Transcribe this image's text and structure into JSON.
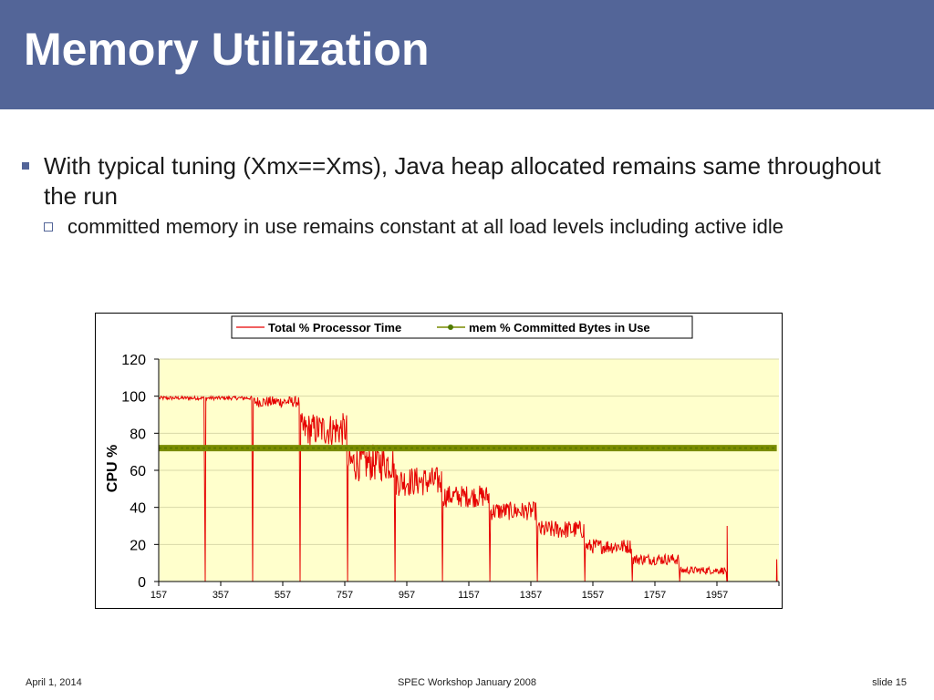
{
  "slide": {
    "title": "Memory Utilization",
    "bullets": [
      {
        "text": "With typical tuning (Xmx==Xms), Java heap allocated remains same throughout the run"
      }
    ],
    "sub_bullets": [
      {
        "text": "committed memory in use remains constant at all load levels including active idle"
      }
    ]
  },
  "footer": {
    "date": "April 1, 2014",
    "event": "SPEC Workshop January 2008",
    "slide_number": "slide 15"
  },
  "colors": {
    "title_bar": "#536598",
    "plot_background": "#ffffcc",
    "cpu_series": "#e60000",
    "mem_series": "#7a8c00"
  },
  "chart_data": {
    "type": "line",
    "title": "",
    "xlabel": "",
    "ylabel": "CPU %",
    "xlim": [
      157,
      2157
    ],
    "ylim": [
      0,
      120
    ],
    "x_ticks": [
      157,
      357,
      557,
      757,
      957,
      1157,
      1357,
      1557,
      1757,
      1957
    ],
    "y_ticks": [
      0,
      20,
      40,
      60,
      80,
      100,
      120
    ],
    "grid": "horizontal",
    "legend": "top-center",
    "series": [
      {
        "name": "Total % Processor Time",
        "style": "line",
        "color": "#e60000",
        "levels": [
          {
            "x_start": 157,
            "x_end": 307,
            "level": 99,
            "noise": 1
          },
          {
            "x_start": 307,
            "x_end": 460,
            "level": 99,
            "noise": 1
          },
          {
            "x_start": 460,
            "x_end": 613,
            "level": 97,
            "noise": 3
          },
          {
            "x_start": 613,
            "x_end": 766,
            "level": 82,
            "noise": 9
          },
          {
            "x_start": 766,
            "x_end": 919,
            "level": 64,
            "noise": 10
          },
          {
            "x_start": 919,
            "x_end": 1072,
            "level": 54,
            "noise": 8
          },
          {
            "x_start": 1072,
            "x_end": 1225,
            "level": 46,
            "noise": 6
          },
          {
            "x_start": 1225,
            "x_end": 1378,
            "level": 38,
            "noise": 5
          },
          {
            "x_start": 1378,
            "x_end": 1531,
            "level": 28,
            "noise": 5
          },
          {
            "x_start": 1531,
            "x_end": 1684,
            "level": 19,
            "noise": 4
          },
          {
            "x_start": 1684,
            "x_end": 1837,
            "level": 12,
            "noise": 3
          },
          {
            "x_start": 1837,
            "x_end": 1990,
            "level": 6,
            "noise": 2
          },
          {
            "x_start": 1990,
            "x_end": 2150,
            "level": 0,
            "noise": 0
          }
        ],
        "spikes": [
          {
            "x": 1990,
            "y": 30
          },
          {
            "x": 2150,
            "y": 12
          }
        ]
      },
      {
        "name": "mem % Committed Bytes in Use",
        "style": "line-marker",
        "color": "#7a8c00",
        "x": [
          157,
          2150
        ],
        "values": [
          72,
          72
        ]
      }
    ]
  }
}
